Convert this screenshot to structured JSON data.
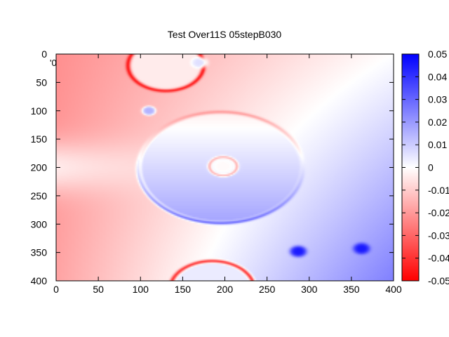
{
  "chart_data": {
    "type": "heatmap",
    "title": "Test Over11S 05stepB030",
    "xlabel": "",
    "ylabel": "",
    "key_label": "'0",
    "xlim": [
      0,
      400
    ],
    "ylim": [
      0,
      400
    ],
    "y_inverted": true,
    "x_ticks": [
      "0",
      "50",
      "100",
      "150",
      "200",
      "250",
      "300",
      "350",
      "400"
    ],
    "y_ticks": [
      "0",
      "50",
      "100",
      "150",
      "200",
      "250",
      "300",
      "350",
      "400"
    ],
    "colorbar": {
      "range": [
        -0.05,
        0.05
      ],
      "ticks": [
        "0.05",
        "0.04",
        "0.03",
        "0.02",
        "0.01",
        "0",
        "-0.01",
        "-0.02",
        "-0.03",
        "-0.04",
        "-0.05"
      ],
      "colormap": [
        "#ff0000",
        "#ffffff",
        "#0000ff"
      ]
    },
    "field": {
      "background": {
        "top_left": -0.022,
        "top_right": 0.0,
        "bottom_left": -0.018,
        "bottom_right": 0.025,
        "left_mid_band_y": 200,
        "left_mid_band_value": -0.004
      },
      "features": [
        {
          "kind": "circle",
          "cx": 130,
          "cy": 20,
          "r": 45,
          "interior": -0.004,
          "rim": -0.045
        },
        {
          "kind": "spot",
          "cx": 170,
          "cy": 15,
          "r": 10,
          "value": 0.006
        },
        {
          "kind": "spot",
          "cx": 110,
          "cy": 100,
          "r": 9,
          "value": 0.015,
          "rim": -0.02
        },
        {
          "kind": "circle",
          "cx": 195,
          "cy": 200,
          "r": 98,
          "interior_top": -0.003,
          "interior_bottom": 0.018,
          "rim_top": -0.02,
          "rim_bottom": 0.03
        },
        {
          "kind": "spot",
          "cx": 198,
          "cy": 198,
          "r": 16,
          "value": -0.001,
          "rim": -0.022
        },
        {
          "kind": "spot",
          "cx": 287,
          "cy": 348,
          "r": 10,
          "value": 0.045
        },
        {
          "kind": "spot",
          "cx": 362,
          "cy": 343,
          "r": 10,
          "value": 0.045
        },
        {
          "kind": "circle",
          "cx": 185,
          "cy": 415,
          "r": 50,
          "interior": 0.004,
          "rim": -0.04
        }
      ]
    }
  }
}
